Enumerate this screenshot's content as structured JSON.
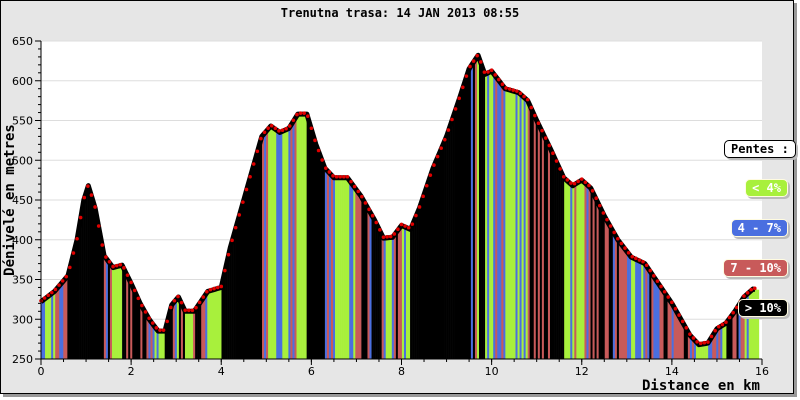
{
  "chart_data": {
    "type": "area",
    "title": "Trenutna trasa: 14 JAN 2013 08:55",
    "xlabel": "Distance en km",
    "ylabel": "Dénivelé en metres",
    "xlim": [
      0,
      16
    ],
    "ylim": [
      250,
      650
    ],
    "xticks": [
      0,
      2,
      4,
      6,
      8,
      10,
      12,
      14,
      16
    ],
    "yticks": [
      250,
      300,
      350,
      400,
      450,
      500,
      550,
      600,
      650
    ],
    "grid": "horizontal",
    "x": [
      0,
      0.3,
      0.6,
      0.8,
      0.95,
      1.05,
      1.2,
      1.4,
      1.6,
      1.8,
      2.0,
      2.2,
      2.4,
      2.6,
      2.75,
      2.9,
      3.05,
      3.2,
      3.4,
      3.7,
      4.0,
      4.2,
      4.5,
      4.7,
      4.9,
      5.1,
      5.3,
      5.5,
      5.7,
      5.9,
      6.1,
      6.3,
      6.5,
      6.8,
      7.1,
      7.4,
      7.6,
      7.8,
      8.0,
      8.2,
      8.4,
      8.7,
      9.0,
      9.3,
      9.5,
      9.7,
      9.85,
      10.0,
      10.3,
      10.6,
      10.8,
      11.0,
      11.3,
      11.6,
      11.8,
      12.0,
      12.2,
      12.5,
      12.8,
      13.1,
      13.4,
      13.7,
      14.0,
      14.2,
      14.4,
      14.6,
      14.8,
      15.0,
      15.2,
      15.4,
      15.6,
      15.8,
      15.9
    ],
    "y": [
      322,
      335,
      355,
      400,
      450,
      468,
      440,
      380,
      365,
      368,
      345,
      320,
      300,
      285,
      285,
      318,
      328,
      310,
      310,
      335,
      340,
      390,
      450,
      490,
      530,
      543,
      535,
      540,
      558,
      558,
      520,
      490,
      478,
      478,
      455,
      425,
      402,
      403,
      418,
      413,
      440,
      490,
      530,
      580,
      615,
      632,
      608,
      612,
      590,
      585,
      575,
      550,
      515,
      478,
      468,
      475,
      465,
      430,
      400,
      378,
      370,
      345,
      320,
      300,
      280,
      268,
      270,
      288,
      295,
      310,
      328,
      338,
      337
    ],
    "legend": {
      "title": "Pentes :",
      "placement": "right",
      "entries": [
        {
          "label": "< 4%",
          "color": "#a8f03c"
        },
        {
          "label": "4 - 7%",
          "color": "#4a6fe0"
        },
        {
          "label": "7 - 10%",
          "color": "#c85a5a"
        },
        {
          "label": "> 10%",
          "color": "#000000"
        }
      ]
    },
    "line_marker_color": "#e00000"
  }
}
